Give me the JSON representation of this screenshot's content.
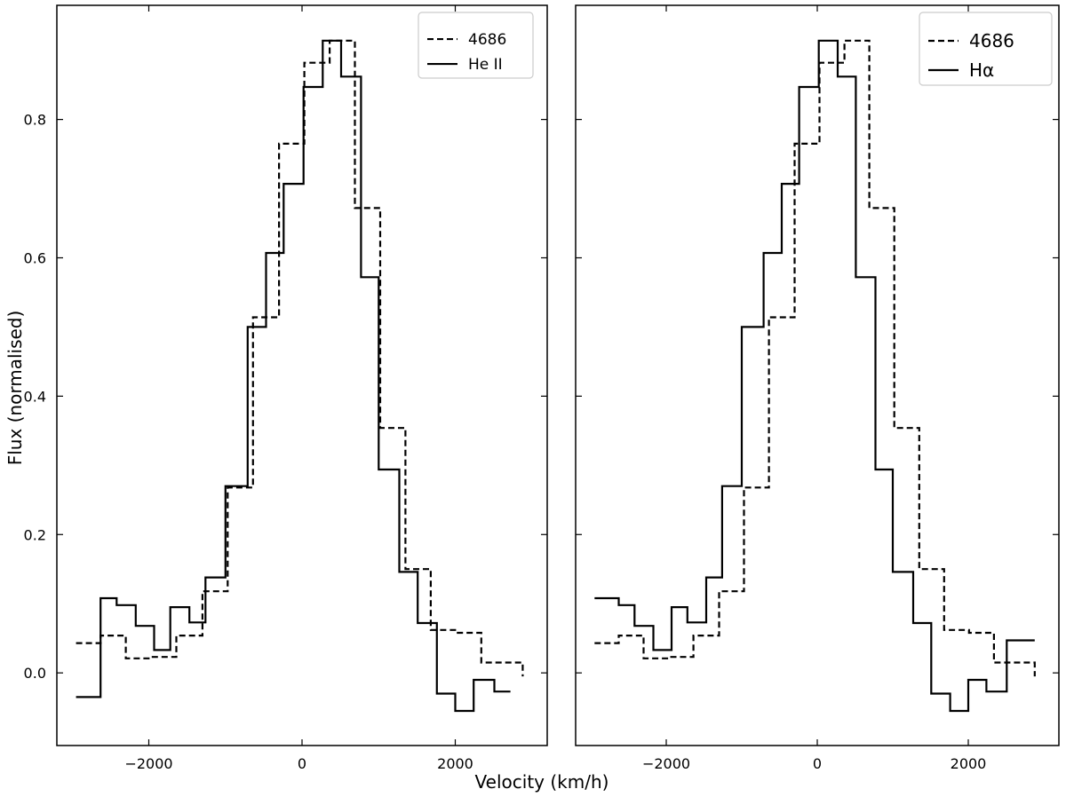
{
  "figure": {
    "xlabel": "Velocity (km/h)",
    "ylabel": "Flux (normalised)"
  },
  "chart_data": [
    {
      "type": "line",
      "step": "post",
      "xlim": [
        -3200,
        3200
      ],
      "ylim": [
        -0.105,
        0.965
      ],
      "xticks": [
        -2000,
        0,
        2000
      ],
      "yticks": [
        0.0,
        0.2,
        0.4,
        0.6,
        0.8
      ],
      "ytick_labels": [
        "0.0",
        "0.2",
        "0.4",
        "0.6",
        "0.8"
      ],
      "grid": false,
      "legend_position": "top-right",
      "series": [
        {
          "name": "4686",
          "style": "dashed",
          "color": "#000000",
          "x": [
            -2950,
            -2630,
            -2300,
            -1970,
            -1640,
            -1300,
            -970,
            -640,
            -300,
            30,
            360,
            690,
            1020,
            1350,
            1680,
            2010,
            2340,
            2880
          ],
          "y": [
            0.043,
            0.054,
            0.021,
            0.023,
            0.054,
            0.118,
            0.268,
            0.514,
            0.765,
            0.882,
            0.914,
            0.672,
            0.354,
            0.15,
            0.062,
            0.058,
            0.015,
            -0.005
          ]
        },
        {
          "name": "He II",
          "style": "solid",
          "color": "#000000",
          "x": [
            -2950,
            -2630,
            -2420,
            -2170,
            -1930,
            -1720,
            -1470,
            -1260,
            -1000,
            -710,
            -470,
            -240,
            20,
            270,
            510,
            770,
            1000,
            1270,
            1510,
            1760,
            2000,
            2240,
            2510,
            2720
          ],
          "y": [
            -0.035,
            0.108,
            0.098,
            0.068,
            0.033,
            0.095,
            0.073,
            0.138,
            0.27,
            0.5,
            0.607,
            0.707,
            0.847,
            0.914,
            0.862,
            0.572,
            0.294,
            0.146,
            0.072,
            -0.03,
            -0.055,
            -0.01,
            -0.027,
            -0.027
          ]
        }
      ]
    },
    {
      "type": "line",
      "step": "post",
      "xlim": [
        -3200,
        3200
      ],
      "ylim": [
        -0.105,
        0.965
      ],
      "xticks": [
        -2000,
        0,
        2000
      ],
      "yticks": [
        0.0,
        0.2,
        0.4,
        0.6,
        0.8
      ],
      "grid": false,
      "legend_position": "top-right",
      "series": [
        {
          "name": "4686",
          "style": "dashed",
          "color": "#000000",
          "x": [
            -2950,
            -2630,
            -2300,
            -1970,
            -1640,
            -1300,
            -970,
            -640,
            -300,
            30,
            360,
            690,
            1020,
            1350,
            1680,
            2010,
            2340,
            2880
          ],
          "y": [
            0.043,
            0.054,
            0.021,
            0.023,
            0.054,
            0.118,
            0.268,
            0.514,
            0.765,
            0.882,
            0.914,
            0.672,
            0.354,
            0.15,
            0.062,
            0.058,
            0.015,
            -0.005
          ]
        },
        {
          "name": "Hα",
          "style": "solid",
          "color": "#000000",
          "x": [
            -2950,
            -2630,
            -2420,
            -2170,
            -1930,
            -1720,
            -1470,
            -1260,
            -1000,
            -710,
            -470,
            -240,
            20,
            270,
            510,
            770,
            1000,
            1270,
            1510,
            1760,
            2000,
            2240,
            2510,
            2720,
            2880
          ],
          "y": [
            0.108,
            0.098,
            0.068,
            0.033,
            0.095,
            0.073,
            0.138,
            0.27,
            0.5,
            0.607,
            0.707,
            0.847,
            0.914,
            0.862,
            0.572,
            0.294,
            0.146,
            0.072,
            -0.03,
            -0.055,
            -0.01,
            -0.027,
            0.047,
            0.047,
            0.047
          ]
        }
      ]
    }
  ]
}
